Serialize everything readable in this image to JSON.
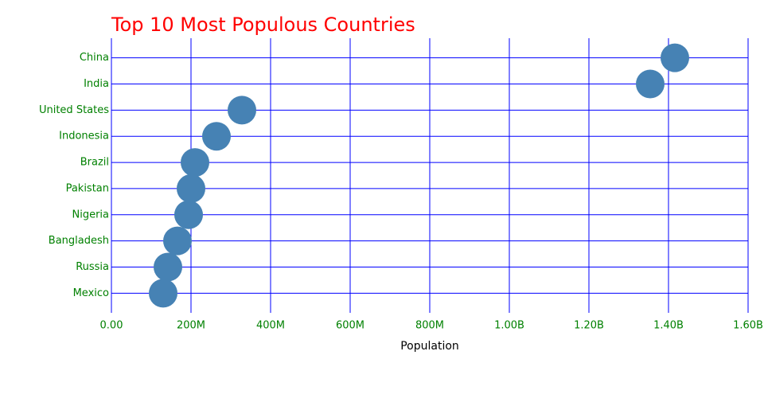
{
  "chart_data": {
    "type": "dot",
    "title": "Top 10 Most Populous Countries",
    "xlabel": "Population",
    "categories": [
      "China",
      "India",
      "United States",
      "Indonesia",
      "Brazil",
      "Pakistan",
      "Nigeria",
      "Bangladesh",
      "Russia",
      "Mexico"
    ],
    "values": [
      1416000000,
      1354000000,
      328000000,
      264000000,
      210000000,
      200000000,
      194000000,
      166000000,
      142000000,
      130000000
    ],
    "color": "#4682b4",
    "xlim": [
      0,
      1600000000
    ],
    "xticks": [
      {
        "value": 0,
        "label": "0.00"
      },
      {
        "value": 200000000,
        "label": "200M"
      },
      {
        "value": 400000000,
        "label": "400M"
      },
      {
        "value": 600000000,
        "label": "600M"
      },
      {
        "value": 800000000,
        "label": "800M"
      },
      {
        "value": 1000000000,
        "label": "1.00B"
      },
      {
        "value": 1200000000,
        "label": "1.20B"
      },
      {
        "value": 1400000000,
        "label": "1.40B"
      },
      {
        "value": 1600000000,
        "label": "1.60B"
      }
    ],
    "grid": true
  }
}
